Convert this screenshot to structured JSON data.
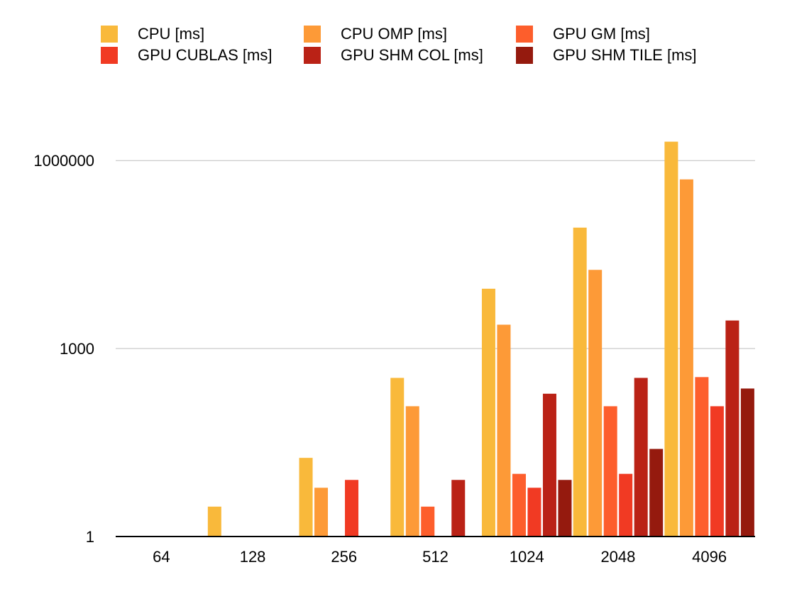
{
  "chart_data": {
    "type": "bar",
    "title": "",
    "xlabel": "",
    "ylabel": "",
    "y_scale": "log",
    "ylim": [
      1,
      3000000
    ],
    "y_ticks": [
      {
        "value": 1,
        "label": "1"
      },
      {
        "value": 1000,
        "label": "1000"
      },
      {
        "value": 1000000,
        "label": "1000000"
      }
    ],
    "grid": true,
    "legend_position": "top",
    "categories": [
      "64",
      "128",
      "256",
      "512",
      "1024",
      "2048",
      "4096"
    ],
    "series": [
      {
        "name": "CPU [ms]",
        "color": "#F9B93B",
        "values": [
          1,
          3,
          18,
          340,
          9000,
          85000,
          2000000
        ]
      },
      {
        "name": "CPU OMP [ms]",
        "color": "#FD9A37",
        "values": [
          1,
          1,
          6,
          120,
          2400,
          18000,
          500000
        ]
      },
      {
        "name": "GPU GM [ms]",
        "color": "#FD5E2C",
        "values": [
          1,
          1,
          1,
          3,
          10,
          120,
          350
        ]
      },
      {
        "name": "GPU CUBLAS [ms]",
        "color": "#F13A23",
        "values": [
          1,
          1,
          8,
          1,
          6,
          10,
          120
        ]
      },
      {
        "name": "GPU SHM COL [ms]",
        "color": "#BA2216",
        "values": [
          1,
          1,
          1,
          8,
          190,
          340,
          2800
        ]
      },
      {
        "name": "GPU SHM TILE [ms]",
        "color": "#951A0E",
        "values": [
          1,
          1,
          1,
          1,
          8,
          25,
          230
        ]
      }
    ]
  }
}
